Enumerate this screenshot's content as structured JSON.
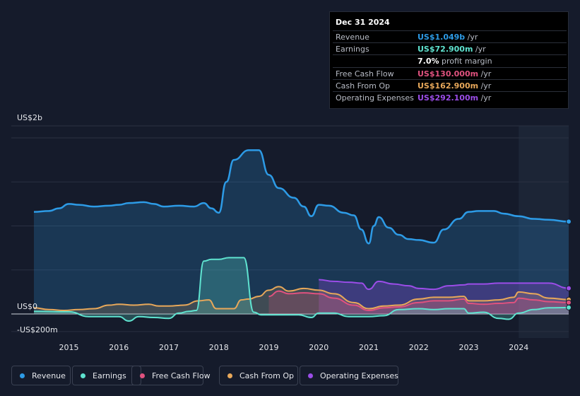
{
  "tooltip": {
    "date": "Dec 31 2024",
    "rows": [
      {
        "label": "Revenue",
        "value": "US$1.049b",
        "unit": "/yr",
        "color": "#2d9be6"
      },
      {
        "label": "Earnings",
        "value": "US$72.900m",
        "unit": "/yr",
        "color": "#5fe3d0"
      },
      {
        "label": "",
        "value": "7.0%",
        "unit": "profit margin",
        "color": "#ffffff"
      },
      {
        "label": "Free Cash Flow",
        "value": "US$130.000m",
        "unit": "/yr",
        "color": "#e0527f"
      },
      {
        "label": "Cash From Op",
        "value": "US$162.900m",
        "unit": "/yr",
        "color": "#e8a85a"
      },
      {
        "label": "Operating Expenses",
        "value": "US$292.100m",
        "unit": "/yr",
        "color": "#9b4de8"
      }
    ]
  },
  "chart_data": {
    "type": "line",
    "y_top_label": "US$2b",
    "y_zero_label": "US$0",
    "y_bottom_label": "-US$200m",
    "ylim": [
      -200,
      2000
    ],
    "xlim": [
      2014.3,
      2025.0
    ],
    "x_ticks": [
      "2015",
      "2016",
      "2017",
      "2018",
      "2019",
      "2020",
      "2021",
      "2022",
      "2023",
      "2024"
    ],
    "forecast_start": 2024.0,
    "series": [
      {
        "name": "Revenue",
        "color": "#2d9be6",
        "x": [
          2014.3,
          2014.6,
          2014.8,
          2015.0,
          2015.2,
          2015.5,
          2015.8,
          2016.0,
          2016.2,
          2016.5,
          2016.7,
          2016.9,
          2017.2,
          2017.5,
          2017.7,
          2017.85,
          2018.0,
          2018.15,
          2018.3,
          2018.6,
          2018.8,
          2019.0,
          2019.2,
          2019.5,
          2019.7,
          2019.85,
          2020.0,
          2020.2,
          2020.5,
          2020.7,
          2020.85,
          2021.0,
          2021.1,
          2021.2,
          2021.4,
          2021.6,
          2021.8,
          2022.0,
          2022.3,
          2022.5,
          2022.8,
          2023.0,
          2023.2,
          2023.5,
          2023.7,
          2024.0,
          2024.3,
          2024.6,
          2025.0
        ],
        "values": [
          1160,
          1170,
          1200,
          1250,
          1240,
          1220,
          1230,
          1240,
          1260,
          1270,
          1250,
          1220,
          1230,
          1220,
          1260,
          1200,
          1150,
          1500,
          1750,
          1860,
          1860,
          1580,
          1430,
          1320,
          1220,
          1110,
          1240,
          1230,
          1150,
          1120,
          960,
          800,
          1000,
          1100,
          980,
          900,
          850,
          840,
          810,
          960,
          1080,
          1160,
          1170,
          1170,
          1140,
          1110,
          1080,
          1070,
          1049
        ]
      },
      {
        "name": "Earnings",
        "color": "#5fe3d0",
        "x": [
          2014.3,
          2015.0,
          2015.4,
          2016.0,
          2016.2,
          2016.4,
          2016.7,
          2017.0,
          2017.2,
          2017.4,
          2017.55,
          2017.7,
          2017.85,
          2018.0,
          2018.2,
          2018.5,
          2018.7,
          2018.85,
          2019.0,
          2019.3,
          2019.6,
          2019.85,
          2020.0,
          2020.3,
          2020.6,
          2021.0,
          2021.3,
          2021.6,
          2022.0,
          2022.3,
          2022.6,
          2022.9,
          2023.0,
          2023.3,
          2023.6,
          2023.8,
          2024.0,
          2024.3,
          2024.6,
          2025.0
        ],
        "values": [
          30,
          25,
          -30,
          -30,
          -80,
          -30,
          -40,
          -50,
          10,
          30,
          40,
          600,
          620,
          620,
          640,
          640,
          20,
          -10,
          -10,
          -10,
          -10,
          -40,
          10,
          10,
          -30,
          -30,
          -20,
          50,
          60,
          50,
          60,
          60,
          10,
          20,
          -50,
          -60,
          10,
          50,
          70,
          72.9
        ]
      },
      {
        "name": "Free Cash Flow",
        "color": "#e0527f",
        "x": [
          2019.0,
          2019.2,
          2019.4,
          2019.7,
          2020.0,
          2020.3,
          2020.7,
          2021.0,
          2021.3,
          2021.6,
          2022.0,
          2022.3,
          2022.6,
          2022.9,
          2023.0,
          2023.3,
          2023.6,
          2023.9,
          2024.0,
          2024.3,
          2024.6,
          2025.0
        ],
        "values": [
          200,
          260,
          230,
          240,
          230,
          180,
          100,
          40,
          70,
          80,
          130,
          150,
          150,
          170,
          120,
          110,
          120,
          130,
          180,
          160,
          140,
          130
        ]
      },
      {
        "name": "Cash From Op",
        "color": "#e8a85a",
        "x": [
          2014.3,
          2014.6,
          2014.9,
          2015.2,
          2015.5,
          2015.8,
          2016.0,
          2016.3,
          2016.6,
          2016.8,
          2017.0,
          2017.3,
          2017.6,
          2017.8,
          2017.95,
          2018.1,
          2018.3,
          2018.45,
          2018.6,
          2018.8,
          2019.0,
          2019.2,
          2019.4,
          2019.7,
          2020.0,
          2020.3,
          2020.7,
          2021.0,
          2021.3,
          2021.6,
          2022.0,
          2022.3,
          2022.6,
          2022.9,
          2023.0,
          2023.3,
          2023.6,
          2023.9,
          2024.0,
          2024.3,
          2024.6,
          2025.0
        ],
        "values": [
          70,
          50,
          40,
          50,
          60,
          100,
          110,
          100,
          110,
          90,
          90,
          100,
          150,
          160,
          60,
          60,
          60,
          160,
          170,
          200,
          270,
          310,
          260,
          290,
          270,
          230,
          130,
          60,
          90,
          100,
          170,
          190,
          190,
          200,
          150,
          150,
          160,
          190,
          250,
          230,
          180,
          162.9
        ]
      },
      {
        "name": "Operating Expenses",
        "color": "#9b4de8",
        "x": [
          2020.0,
          2020.3,
          2020.6,
          2020.85,
          2021.0,
          2021.2,
          2021.5,
          2021.8,
          2022.0,
          2022.3,
          2022.6,
          2022.9,
          2023.0,
          2023.3,
          2023.6,
          2023.9,
          2024.0,
          2024.3,
          2024.6,
          2025.0
        ],
        "values": [
          390,
          370,
          360,
          350,
          280,
          370,
          340,
          320,
          290,
          280,
          320,
          330,
          340,
          340,
          350,
          350,
          350,
          350,
          350,
          292.1
        ]
      }
    ],
    "legend": [
      "Revenue",
      "Earnings",
      "Free Cash Flow",
      "Cash From Op",
      "Operating Expenses"
    ]
  }
}
